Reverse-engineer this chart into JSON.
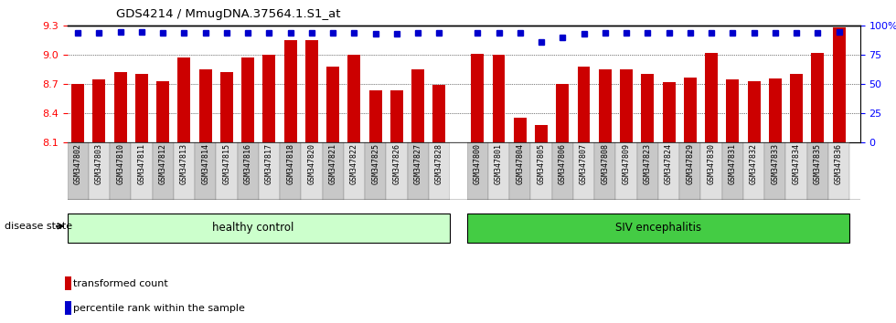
{
  "title": "GDS4214 / MmugDNA.37564.1.S1_at",
  "samples": [
    "GSM347802",
    "GSM347803",
    "GSM347810",
    "GSM347811",
    "GSM347812",
    "GSM347813",
    "GSM347814",
    "GSM347815",
    "GSM347816",
    "GSM347817",
    "GSM347818",
    "GSM347820",
    "GSM347821",
    "GSM347822",
    "GSM347825",
    "GSM347826",
    "GSM347827",
    "GSM347828",
    "GSM347800",
    "GSM347801",
    "GSM347804",
    "GSM347805",
    "GSM347806",
    "GSM347807",
    "GSM347808",
    "GSM347809",
    "GSM347823",
    "GSM347824",
    "GSM347829",
    "GSM347830",
    "GSM347831",
    "GSM347832",
    "GSM347833",
    "GSM347834",
    "GSM347835",
    "GSM347836"
  ],
  "bar_values": [
    8.7,
    8.75,
    8.82,
    8.8,
    8.73,
    8.97,
    8.85,
    8.82,
    8.97,
    9.0,
    9.15,
    9.15,
    8.88,
    9.0,
    8.63,
    8.63,
    8.85,
    8.69,
    9.01,
    9.0,
    8.35,
    8.28,
    8.7,
    8.88,
    8.85,
    8.85,
    8.8,
    8.72,
    8.77,
    9.02,
    8.75,
    8.73,
    8.76,
    8.8,
    9.02,
    9.28
  ],
  "percentile_values": [
    94,
    94,
    95,
    95,
    94,
    94,
    94,
    94,
    94,
    94,
    94,
    94,
    94,
    94,
    93,
    93,
    94,
    94,
    94,
    94,
    94,
    86,
    90,
    93,
    94,
    94,
    94,
    94,
    94,
    94,
    94,
    94,
    94,
    94,
    94,
    95
  ],
  "healthy_count": 18,
  "ylim_left": [
    8.1,
    9.3
  ],
  "ylim_right": [
    0,
    100
  ],
  "yticks_left": [
    8.1,
    8.4,
    8.7,
    9.0,
    9.3
  ],
  "yticks_right": [
    0,
    25,
    50,
    75,
    100
  ],
  "bar_color": "#cc0000",
  "dot_color": "#0000cc",
  "healthy_color": "#ccffcc",
  "siv_color": "#44cc44",
  "gap_color": "#ffffff"
}
